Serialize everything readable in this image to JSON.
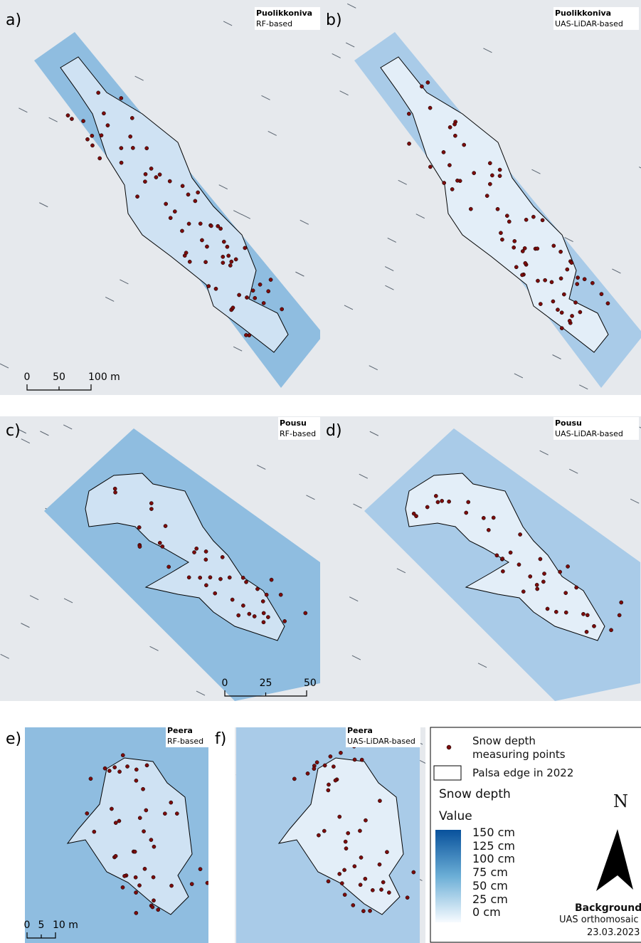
{
  "panels": [
    {
      "label": "a)",
      "site": "Puolikkoniva",
      "method": "RF-based",
      "scale": [
        "0",
        "50",
        "100 m"
      ]
    },
    {
      "label": "b)",
      "site": "Puolikkoniva",
      "method": "UAS-LiDAR-based"
    },
    {
      "label": "c)",
      "site": "Pousu",
      "method": "RF-based",
      "scale": [
        "0",
        "25",
        "50 m"
      ]
    },
    {
      "label": "d)",
      "site": "Pousu",
      "method": "UAS-LiDAR-based"
    },
    {
      "label": "e)",
      "site": "Peera",
      "method": "RF-based",
      "scale": [
        "0",
        "5",
        "10 m"
      ]
    },
    {
      "label": "f)",
      "site": "Peera",
      "method": "UAS-LiDAR-based"
    }
  ],
  "legend": {
    "points": "Snow depth measuring points",
    "edge": "Palsa edge in 2022",
    "title": "Snow depth",
    "subtitle": "Value",
    "ramp": [
      "150 cm",
      "125 cm",
      "100 cm",
      "75 cm",
      "50 cm",
      "25 cm",
      "0 cm"
    ],
    "north": "N",
    "background_title": "Background",
    "background_lines": [
      "UAS orthomosaic",
      "23.03.2023"
    ]
  }
}
